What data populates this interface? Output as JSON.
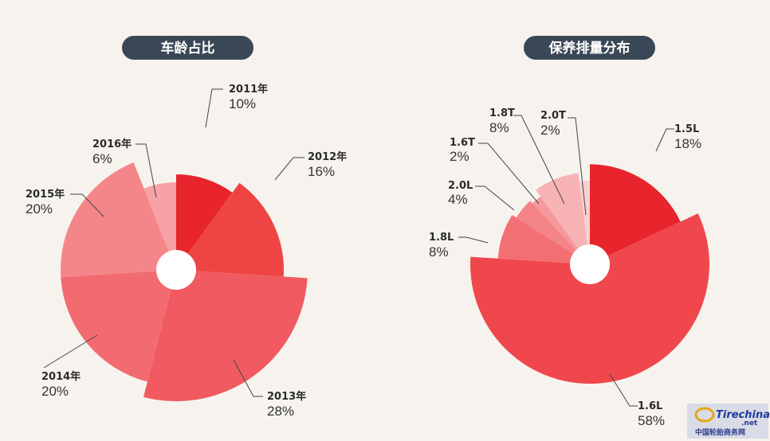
{
  "chart_data": [
    {
      "type": "pie",
      "title": "车龄占比",
      "categories": [
        "2011年",
        "2012年",
        "2013年",
        "2014年",
        "2015年",
        "2016年"
      ],
      "values": [
        10,
        16,
        28,
        20,
        20,
        6
      ],
      "value_labels": [
        "10%",
        "16%",
        "28%",
        "20%",
        "20%",
        "6%"
      ],
      "colors": [
        "#e8242c",
        "#ef4444",
        "#f05a60",
        "#f26b70",
        "#f4868a",
        "#f7a3a5"
      ],
      "variable_radius": true
    },
    {
      "type": "pie",
      "title": "保养排量分布",
      "categories": [
        "1.5L",
        "1.6L",
        "1.8L",
        "2.0L",
        "1.6T",
        "1.8T",
        "2.0T"
      ],
      "values": [
        18,
        58,
        8,
        4,
        2,
        8,
        2
      ],
      "value_labels": [
        "18%",
        "58%",
        "8%",
        "4%",
        "2%",
        "8%",
        "2%"
      ],
      "colors": [
        "#e8242c",
        "#f0474d",
        "#f26f73",
        "#f48488",
        "#f6999c",
        "#f8b3b5",
        "#fad0d1"
      ],
      "variable_radius": true
    }
  ],
  "watermark": {
    "logo_text": "Tirechina",
    "logo_sub": ".net",
    "caption": "中国轮胎商务网"
  }
}
